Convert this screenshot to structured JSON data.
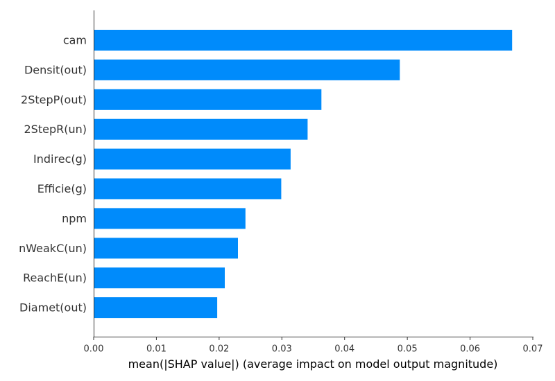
{
  "chart_data": {
    "type": "bar",
    "orientation": "horizontal",
    "categories": [
      "cam",
      "Densit(out)",
      "2StepP(out)",
      "2StepR(un)",
      "Indirec(g)",
      "Efficie(g)",
      "npm",
      "nWeakC(un)",
      "ReachE(un)",
      "Diamet(out)"
    ],
    "values": [
      0.0667,
      0.0488,
      0.0363,
      0.0341,
      0.0314,
      0.0299,
      0.0242,
      0.023,
      0.0209,
      0.0197
    ],
    "title": "",
    "xlabel": "mean(|SHAP value|) (average impact on model output magnitude)",
    "ylabel": "",
    "xlim": [
      0,
      0.07
    ],
    "xticks": [
      "0.00",
      "0.01",
      "0.02",
      "0.03",
      "0.04",
      "0.05",
      "0.06",
      "0.07"
    ],
    "grid": false,
    "bar_color": "#008bfb"
  }
}
